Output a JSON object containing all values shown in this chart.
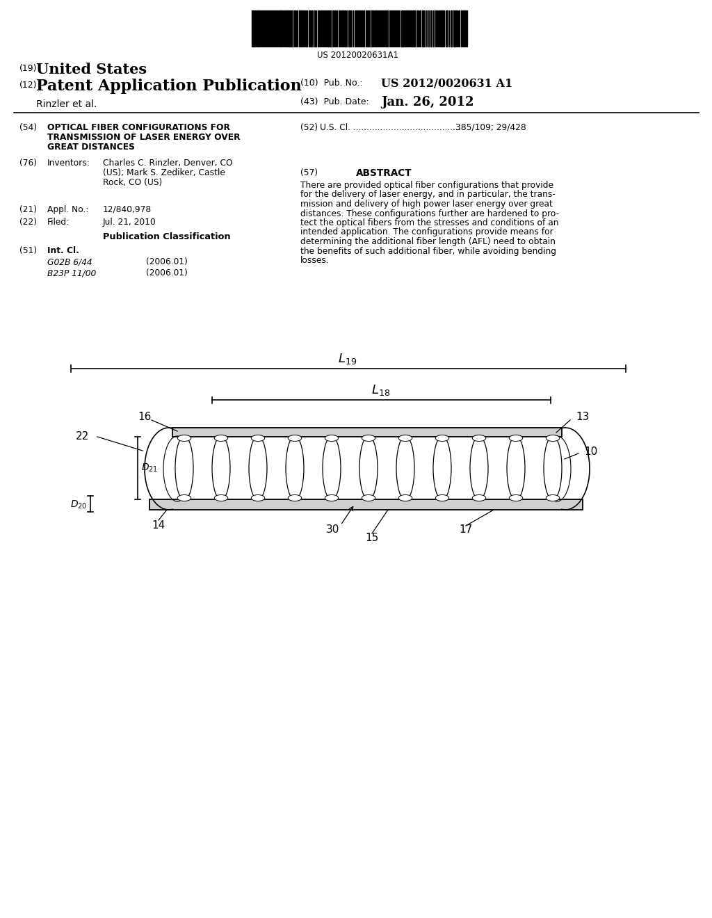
{
  "bg_color": "#ffffff",
  "barcode_text": "US 20120020631A1",
  "title_19_num": "(19)",
  "title_19_text": "United States",
  "title_12_num": "(12)",
  "title_12_text": "Patent Application Publication",
  "pub_no_label": "(10)  Pub. No.:",
  "pub_no": "US 2012/0020631 A1",
  "pub_date_label": "(43)  Pub. Date:",
  "pub_date": "Jan. 26, 2012",
  "inventor_label": "Rinzler et al.",
  "field54_label": "(54)",
  "field54_line1": "OPTICAL FIBER CONFIGURATIONS FOR",
  "field54_line2": "TRANSMISSION OF LASER ENERGY OVER",
  "field54_line3": "GREAT DISTANCES",
  "field52_label": "(52)",
  "field52_text": "U.S. Cl. ........................................",
  "field52_num": "385/109; 29/428",
  "field76_label": "(76)",
  "field76_title": "Inventors:",
  "field76_line1": "Charles C. Rinzler, Denver, CO",
  "field76_line2": "(US); Mark S. Zediker, Castle",
  "field76_line3": "Rock, CO (US)",
  "field57_label": "(57)",
  "field57_title": "ABSTRACT",
  "abstract_line1": "There are provided optical fiber configurations that provide",
  "abstract_line2": "for the delivery of laser energy, and in particular, the trans-",
  "abstract_line3": "mission and delivery of high power laser energy over great",
  "abstract_line4": "distances. These configurations further are hardened to pro-",
  "abstract_line5": "tect the optical fibers from the stresses and conditions of an",
  "abstract_line6": "intended application. The configurations provide means for",
  "abstract_line7": "determining the additional fiber length (AFL) need to obtain",
  "abstract_line8": "the benefits of such additional fiber, while avoiding bending",
  "abstract_line9": "losses.",
  "field21_label": "(21)",
  "field21_title": "Appl. No.:",
  "field21": "12/840,978",
  "field22_label": "(22)",
  "field22_title": "Filed:",
  "field22": "Jul. 21, 2010",
  "pub_class_title": "Publication Classification",
  "field51_label": "(51)",
  "field51_title": "Int. Cl.",
  "field51_g02b": "G02B 6/44",
  "field51_g02b_date": "(2006.01)",
  "field51_b23p": "B23P 11/00",
  "field51_b23p_date": "(2006.01)"
}
